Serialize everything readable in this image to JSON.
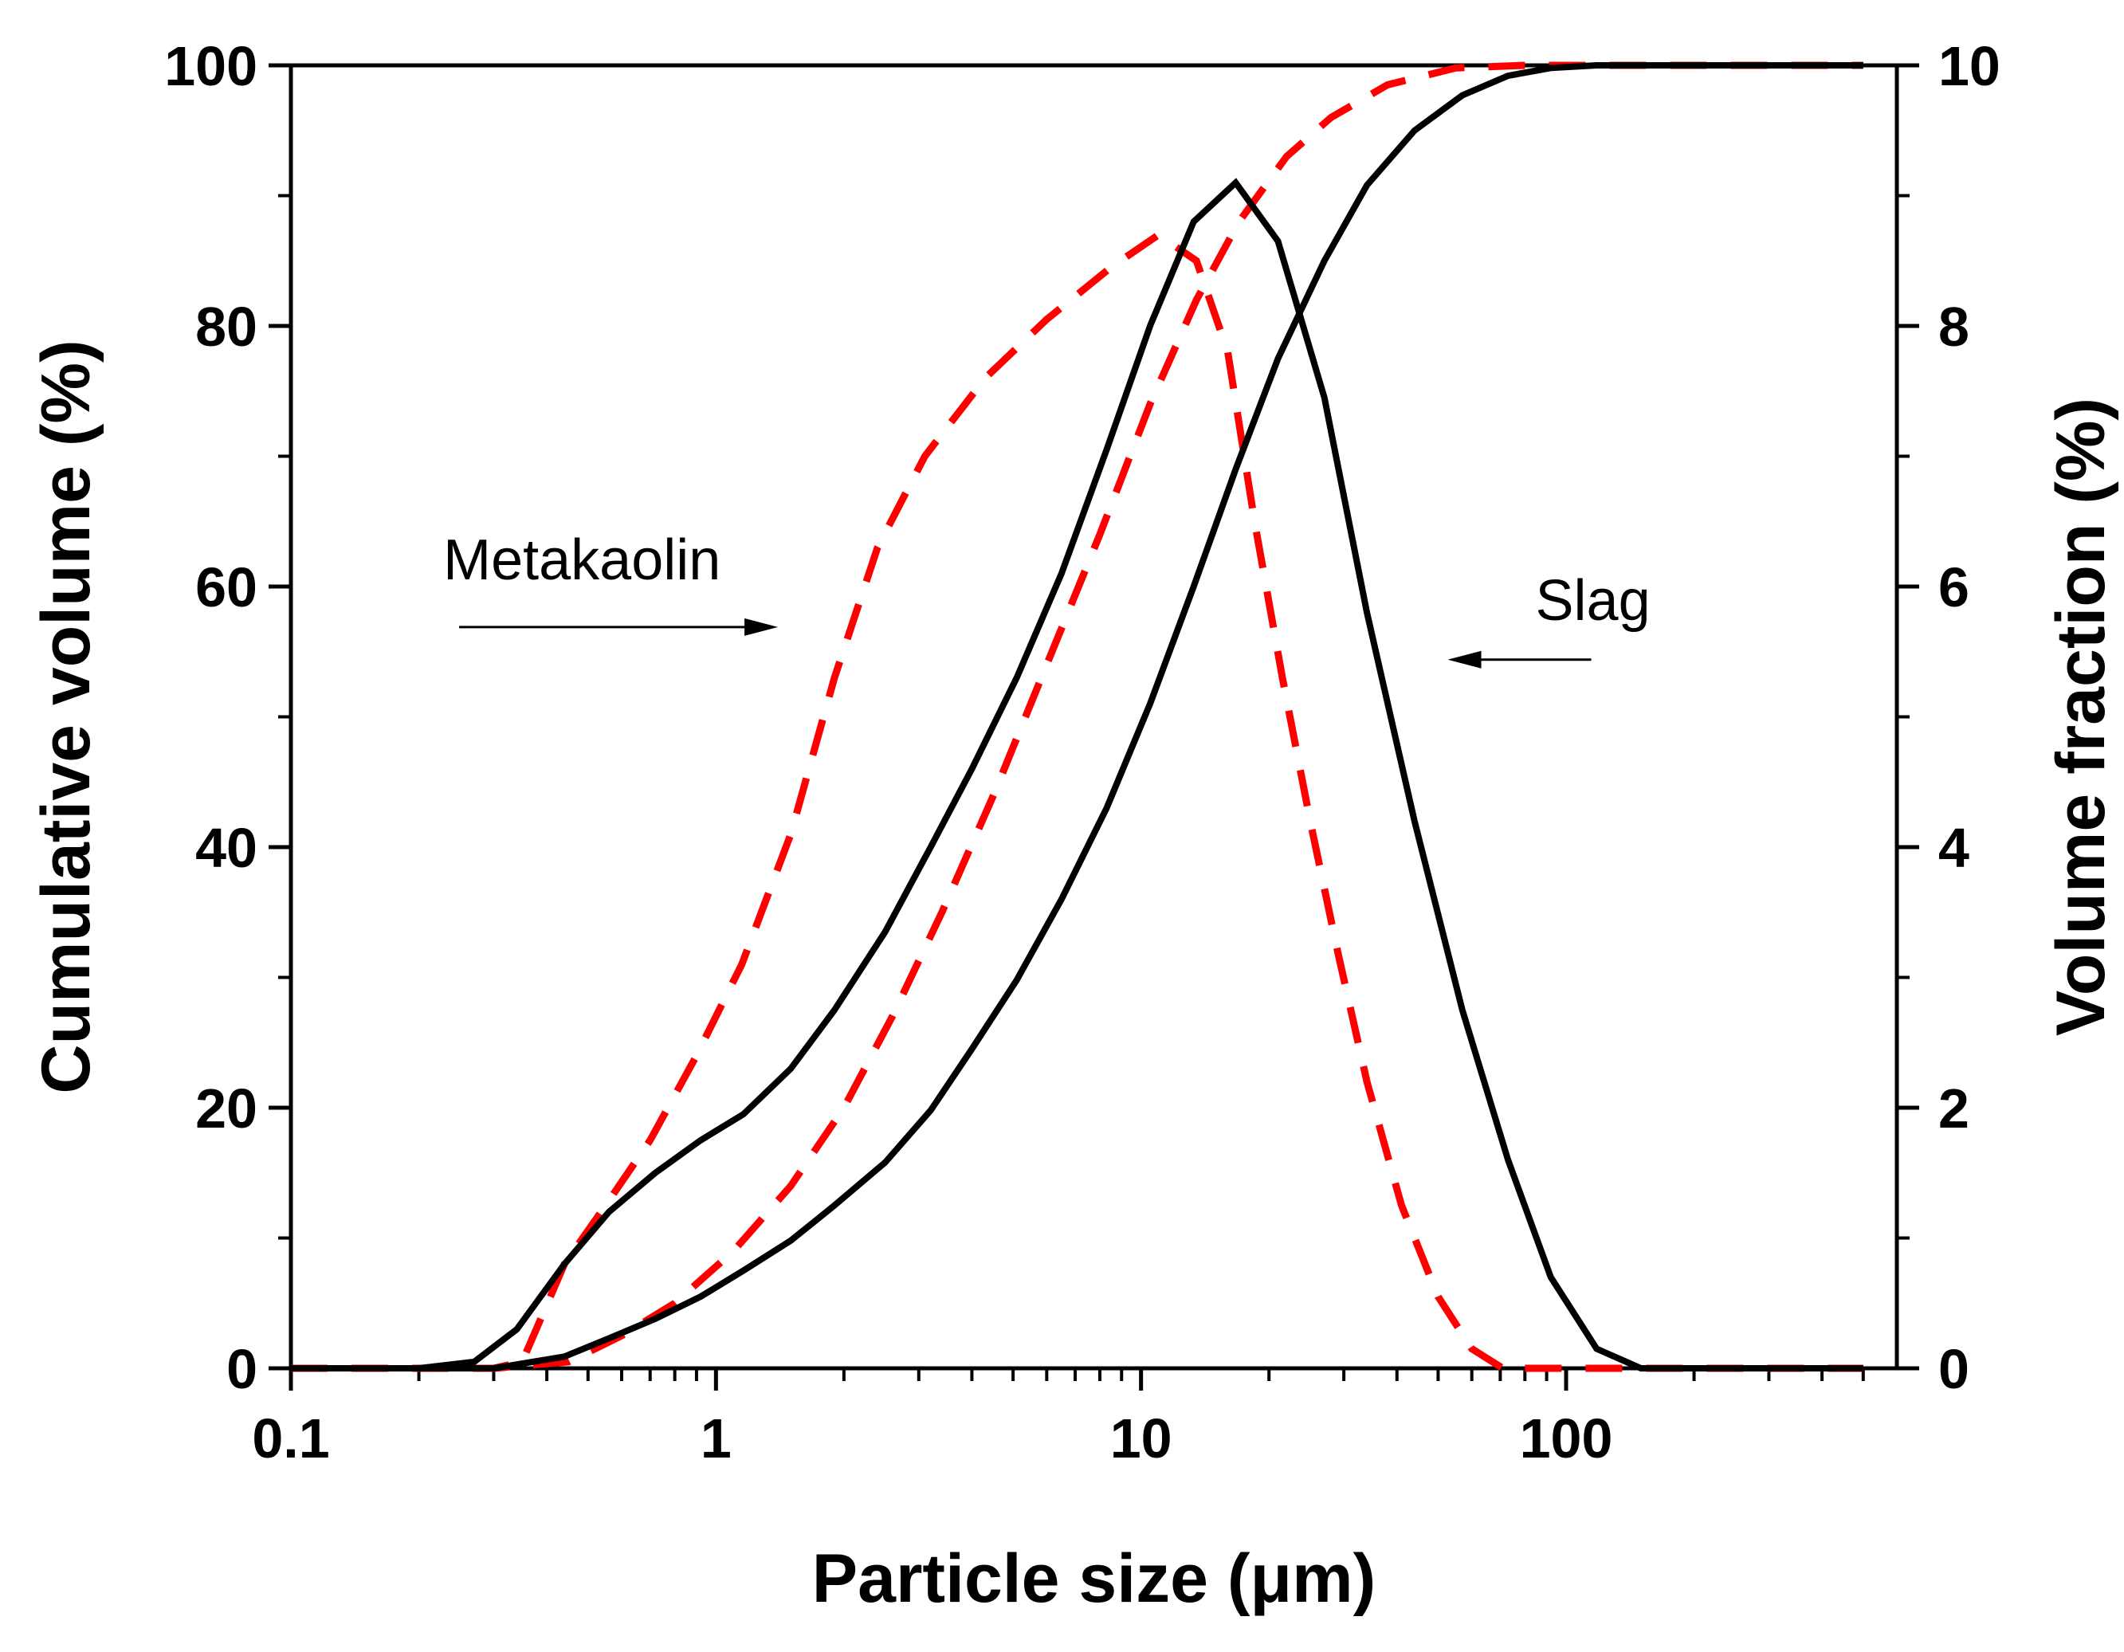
{
  "chart_data": {
    "type": "line",
    "title": "",
    "xlabel": "Particle size (μm)",
    "ylabel_left": "Cumulative volume (%)",
    "ylabel_right": "Volume fraction (%)",
    "xscale": "log",
    "xlim": [
      0.1,
      600
    ],
    "ylim_left": [
      0,
      100
    ],
    "ylim_right": [
      0,
      10
    ],
    "grid": false,
    "x_ticks": [
      0.1,
      1,
      10,
      100
    ],
    "x_tick_labels": [
      "0.1",
      "1",
      "10",
      "100"
    ],
    "y_left_ticks": [
      0,
      20,
      40,
      60,
      80,
      100
    ],
    "y_left_tick_labels": [
      "0",
      "20",
      "40",
      "60",
      "80",
      "100"
    ],
    "y_right_ticks": [
      0,
      2,
      4,
      6,
      8,
      10
    ],
    "y_right_tick_labels": [
      "0",
      "2",
      "4",
      "6",
      "8",
      "10"
    ],
    "annotations": [
      {
        "text": "Metakaolin",
        "arrow": "right",
        "data_x": 0.4,
        "data_y_left": 57.5
      },
      {
        "text": "Slag",
        "arrow": "left",
        "data_x": 55,
        "data_y_left": 55
      }
    ],
    "series": [
      {
        "name": "Metakaolin volume fraction",
        "material": "Metakaolin",
        "axis": "right",
        "style": "dashed",
        "color": "#ff0000",
        "points": [
          [
            0.1,
            0
          ],
          [
            0.2,
            0
          ],
          [
            0.3,
            0
          ],
          [
            0.35,
            0.05
          ],
          [
            0.44,
            0.8
          ],
          [
            0.55,
            1.25
          ],
          [
            0.7,
            1.75
          ],
          [
            0.9,
            2.4
          ],
          [
            1.15,
            3.1
          ],
          [
            1.5,
            4.1
          ],
          [
            1.9,
            5.3
          ],
          [
            2.4,
            6.3
          ],
          [
            3.1,
            7.0
          ],
          [
            4.3,
            7.6
          ],
          [
            6,
            8.05
          ],
          [
            8.5,
            8.45
          ],
          [
            11,
            8.7
          ],
          [
            13.5,
            8.5
          ],
          [
            16,
            7.8
          ],
          [
            18.5,
            6.5
          ],
          [
            21.5,
            5.3
          ],
          [
            25,
            4.2
          ],
          [
            29,
            3.2
          ],
          [
            34,
            2.2
          ],
          [
            41,
            1.25
          ],
          [
            50,
            0.55
          ],
          [
            60,
            0.15
          ],
          [
            71,
            0
          ],
          [
            100,
            0
          ],
          [
            200,
            0
          ],
          [
            500,
            0
          ]
        ]
      },
      {
        "name": "Metakaolin cumulative volume",
        "material": "Metakaolin",
        "axis": "left",
        "style": "dashed",
        "color": "#ff0000",
        "points": [
          [
            0.1,
            0
          ],
          [
            0.2,
            0
          ],
          [
            0.3,
            0
          ],
          [
            0.45,
            0.5
          ],
          [
            0.6,
            2.5
          ],
          [
            0.8,
            5
          ],
          [
            1.1,
            9
          ],
          [
            1.5,
            14
          ],
          [
            2,
            20
          ],
          [
            2.6,
            27
          ],
          [
            3.4,
            35
          ],
          [
            4.5,
            44
          ],
          [
            6,
            54
          ],
          [
            8,
            64
          ],
          [
            10.5,
            74
          ],
          [
            13.5,
            82
          ],
          [
            17,
            88
          ],
          [
            22,
            93
          ],
          [
            28,
            96
          ],
          [
            38,
            98.5
          ],
          [
            55,
            99.8
          ],
          [
            80,
            100
          ],
          [
            100,
            100
          ],
          [
            200,
            100
          ],
          [
            500,
            100
          ]
        ]
      },
      {
        "name": "Slag volume fraction",
        "material": "Slag",
        "axis": "right",
        "style": "solid",
        "color": "#000000",
        "points": [
          [
            0.1,
            0
          ],
          [
            0.2,
            0
          ],
          [
            0.27,
            0.05
          ],
          [
            0.34,
            0.3
          ],
          [
            0.44,
            0.8
          ],
          [
            0.56,
            1.2
          ],
          [
            0.72,
            1.5
          ],
          [
            0.92,
            1.75
          ],
          [
            1.16,
            1.95
          ],
          [
            1.5,
            2.3
          ],
          [
            1.9,
            2.75
          ],
          [
            2.5,
            3.35
          ],
          [
            3.2,
            4.0
          ],
          [
            4,
            4.6
          ],
          [
            5.1,
            5.3
          ],
          [
            6.5,
            6.1
          ],
          [
            8.3,
            7.05
          ],
          [
            10.5,
            8.0
          ],
          [
            13.3,
            8.8
          ],
          [
            16.7,
            9.1
          ],
          [
            21,
            8.65
          ],
          [
            27,
            7.45
          ],
          [
            34,
            5.8
          ],
          [
            44,
            4.2
          ],
          [
            57,
            2.75
          ],
          [
            73,
            1.6
          ],
          [
            92,
            0.7
          ],
          [
            118,
            0.15
          ],
          [
            150,
            0
          ],
          [
            200,
            0
          ],
          [
            300,
            0
          ],
          [
            500,
            0
          ]
        ]
      },
      {
        "name": "Slag cumulative volume",
        "material": "Slag",
        "axis": "left",
        "style": "solid",
        "color": "#000000",
        "points": [
          [
            0.1,
            0
          ],
          [
            0.2,
            0
          ],
          [
            0.3,
            0
          ],
          [
            0.44,
            0.9
          ],
          [
            0.56,
            2.3
          ],
          [
            0.72,
            3.8
          ],
          [
            0.92,
            5.5
          ],
          [
            1.16,
            7.5
          ],
          [
            1.5,
            9.8
          ],
          [
            1.9,
            12.5
          ],
          [
            2.5,
            15.8
          ],
          [
            3.2,
            19.8
          ],
          [
            4,
            24.5
          ],
          [
            5.1,
            29.8
          ],
          [
            6.5,
            36
          ],
          [
            8.3,
            43
          ],
          [
            10.5,
            51
          ],
          [
            13.3,
            60
          ],
          [
            16.7,
            69
          ],
          [
            21,
            77.5
          ],
          [
            27,
            85
          ],
          [
            34,
            90.8
          ],
          [
            44,
            95
          ],
          [
            57,
            97.7
          ],
          [
            73,
            99.2
          ],
          [
            92,
            99.8
          ],
          [
            118,
            100
          ],
          [
            200,
            100
          ],
          [
            500,
            100
          ]
        ]
      }
    ]
  }
}
